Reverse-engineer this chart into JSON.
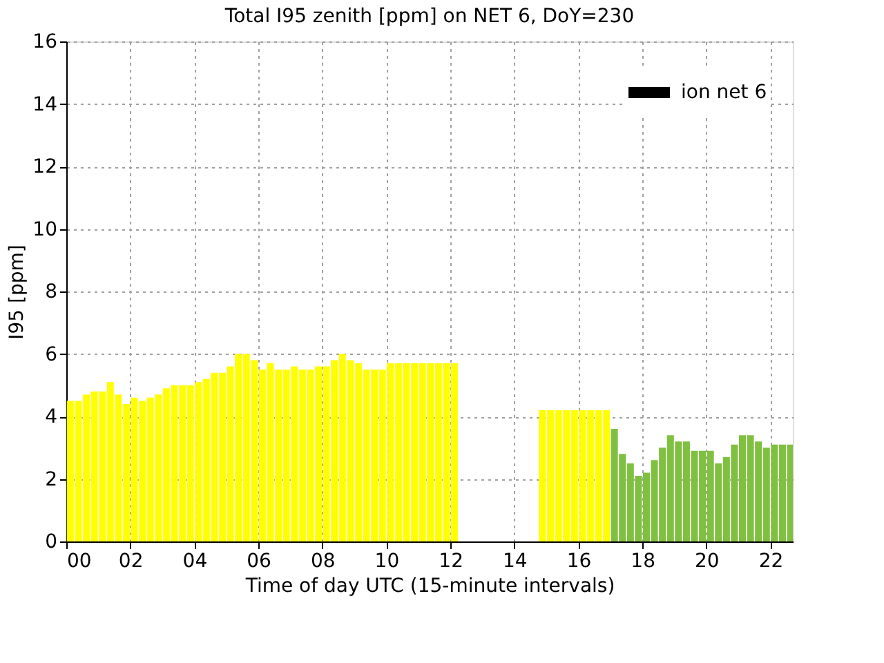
{
  "chart_data": {
    "type": "bar",
    "title": "Total I95 zenith [ppm] on NET 6, DoY=230",
    "xlabel": "Time of day UTC (15-minute intervals)",
    "ylabel": "I95 [ppm]",
    "x": [
      0.125,
      0.375,
      0.625,
      0.875,
      1.125,
      1.375,
      1.625,
      1.875,
      2.125,
      2.375,
      2.625,
      2.875,
      3.125,
      3.375,
      3.625,
      3.875,
      4.125,
      4.375,
      4.625,
      4.875,
      5.125,
      5.375,
      5.625,
      5.875,
      6.125,
      6.375,
      6.625,
      6.875,
      7.125,
      7.375,
      7.625,
      7.875,
      8.125,
      8.375,
      8.625,
      8.875,
      9.125,
      9.375,
      9.625,
      9.875,
      10.125,
      10.375,
      10.625,
      10.875,
      11.125,
      11.375,
      11.625,
      11.875,
      12.125,
      12.375,
      12.625,
      12.875,
      13.125,
      13.375,
      13.625,
      13.875,
      14.125,
      14.375,
      14.625,
      14.875,
      15.125,
      15.375,
      15.625,
      15.875,
      16.125,
      16.375,
      16.625,
      16.875,
      17.125,
      17.375,
      17.625,
      17.875,
      18.125,
      18.375,
      18.625,
      18.875,
      19.125,
      19.375,
      19.625,
      19.875,
      20.125,
      20.375,
      20.625,
      20.875,
      21.125,
      21.375,
      21.625,
      21.875,
      22.125,
      22.375,
      22.625
    ],
    "series": [
      {
        "name": "ion net 6",
        "color": "#000000",
        "values": [
          4.5,
          4.5,
          4.7,
          4.8,
          4.8,
          5.1,
          4.7,
          4.4,
          4.6,
          4.5,
          4.6,
          4.7,
          4.9,
          5.0,
          5.0,
          5.0,
          5.1,
          5.2,
          5.4,
          5.4,
          5.6,
          6.0,
          6.0,
          5.8,
          5.5,
          5.7,
          5.5,
          5.5,
          5.6,
          5.5,
          5.5,
          5.6,
          5.6,
          5.8,
          6.0,
          5.8,
          5.7,
          5.5,
          5.5,
          5.5,
          5.7,
          5.7,
          5.7,
          5.7,
          5.7,
          5.7,
          5.7,
          5.7,
          5.7,
          null,
          null,
          null,
          null,
          null,
          null,
          null,
          null,
          null,
          null,
          4.2,
          4.2,
          4.2,
          4.2,
          4.2,
          4.2,
          4.2,
          4.2,
          4.2,
          3.6,
          2.8,
          2.5,
          2.1,
          2.2,
          2.6,
          3.0,
          3.4,
          3.2,
          3.2,
          2.9,
          2.9,
          2.9,
          2.5,
          2.7,
          3.1,
          3.4,
          3.4,
          3.2,
          3.0,
          3.1,
          3.1,
          3.1
        ],
        "colors": [
          "#ffff00",
          "#ffff00",
          "#ffff00",
          "#ffff00",
          "#ffff00",
          "#ffff00",
          "#ffff00",
          "#ffff00",
          "#ffff00",
          "#ffff00",
          "#ffff00",
          "#ffff00",
          "#ffff00",
          "#ffff00",
          "#ffff00",
          "#ffff00",
          "#ffff00",
          "#ffff00",
          "#ffff00",
          "#ffff00",
          "#ffff00",
          "#ffff00",
          "#ffff00",
          "#ffff00",
          "#ffff00",
          "#ffff00",
          "#ffff00",
          "#ffff00",
          "#ffff00",
          "#ffff00",
          "#ffff00",
          "#ffff00",
          "#ffff00",
          "#ffff00",
          "#ffff00",
          "#ffff00",
          "#ffff00",
          "#ffff00",
          "#ffff00",
          "#ffff00",
          "#ffff00",
          "#ffff00",
          "#ffff00",
          "#ffff00",
          "#ffff00",
          "#ffff00",
          "#ffff00",
          "#ffff00",
          "#ffff00",
          "#ffff00",
          "#ffff00",
          "#ffff00",
          "#ffff00",
          "#ffff00",
          "#ffff00",
          "#ffff00",
          "#ffff00",
          "#ffff00",
          "#ffff00",
          "#ffff00",
          "#ffff00",
          "#ffff00",
          "#ffff00",
          "#ffff00",
          "#ffff00",
          "#ffff00",
          "#ffff00",
          "#ffff00",
          "#80c040",
          "#80c040",
          "#80c040",
          "#80c040",
          "#80c040",
          "#80c040",
          "#80c040",
          "#80c040",
          "#80c040",
          "#80c040",
          "#80c040",
          "#80c040",
          "#80c040",
          "#80c040",
          "#80c040",
          "#80c040",
          "#80c040",
          "#80c040",
          "#80c040",
          "#80c040",
          "#80c040",
          "#80c040",
          "#80c040"
        ]
      }
    ],
    "xlim": [
      0,
      22.7
    ],
    "xticks": [
      {
        "value": 0,
        "label": "00"
      },
      {
        "value": 2,
        "label": "02"
      },
      {
        "value": 4,
        "label": "04"
      },
      {
        "value": 6,
        "label": "06"
      },
      {
        "value": 8,
        "label": "08"
      },
      {
        "value": 10,
        "label": "10"
      },
      {
        "value": 12,
        "label": "12"
      },
      {
        "value": 14,
        "label": "14"
      },
      {
        "value": 16,
        "label": "16"
      },
      {
        "value": 18,
        "label": "18"
      },
      {
        "value": 20,
        "label": "20"
      },
      {
        "value": 22,
        "label": "22"
      }
    ],
    "ylim": [
      0,
      16
    ],
    "yticks": [
      0,
      2,
      4,
      6,
      8,
      10,
      12,
      14,
      16
    ],
    "grid": true,
    "legend": "top right"
  }
}
